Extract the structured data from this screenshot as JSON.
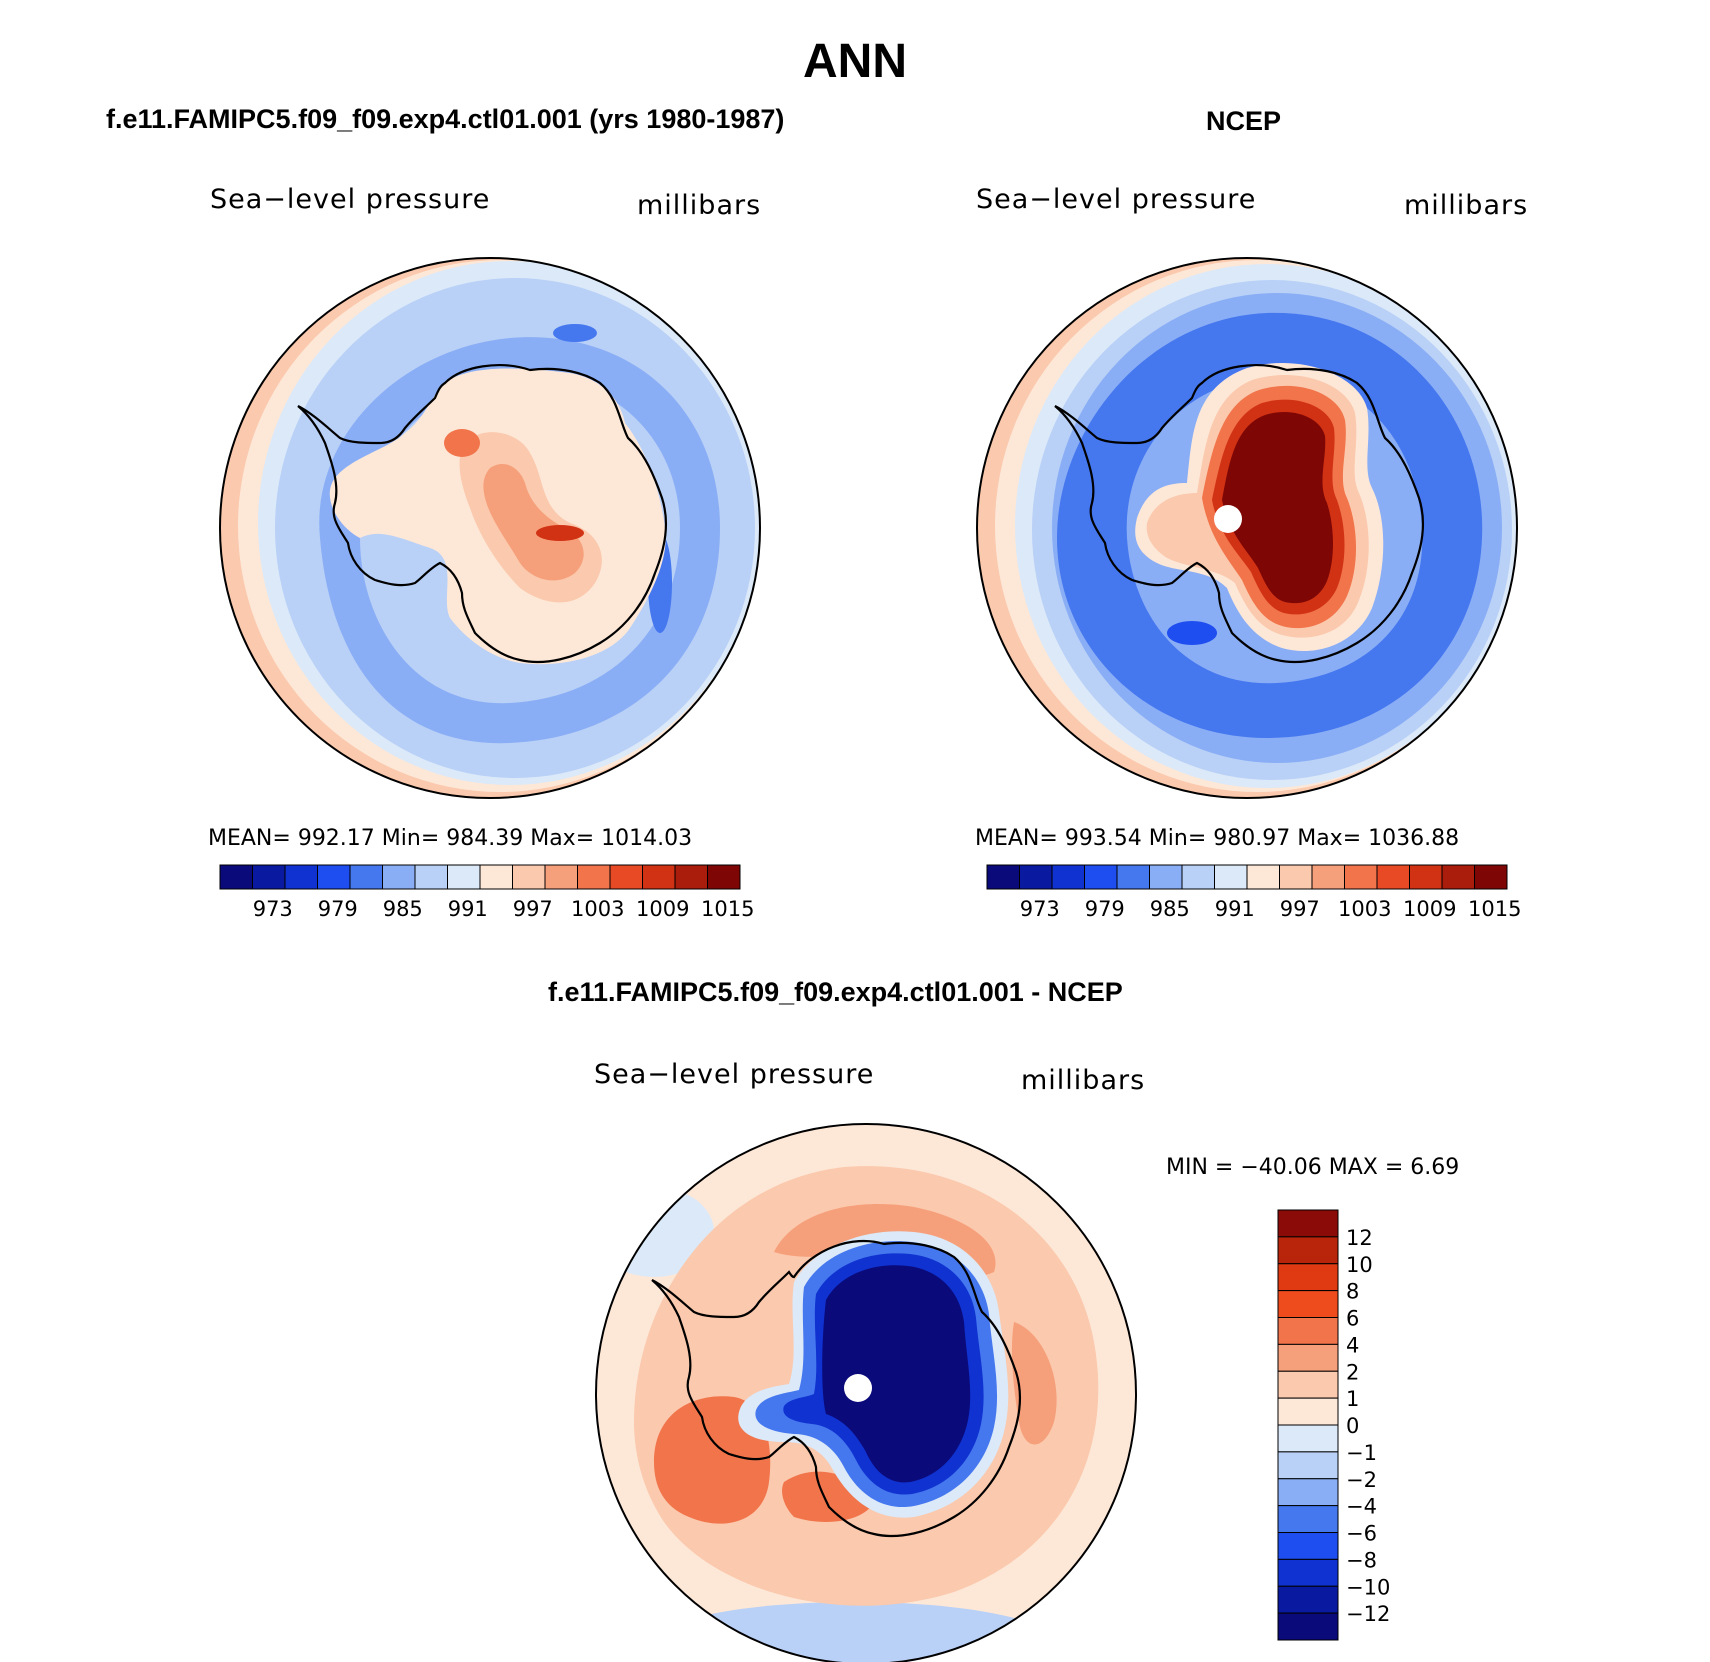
{
  "figure": {
    "title": "ANN"
  },
  "panels": [
    {
      "title": "f.e11.FAMIPC5.f09_f09.exp4.ctl01.001 (yrs 1980-1987)",
      "variable": "Sea−level pressure",
      "units": "millibars",
      "stats": "MEAN=  992.17    Min=  984.39    Max=  1014.03"
    },
    {
      "title": "NCEP",
      "variable": "Sea−level pressure",
      "units": "millibars",
      "stats": "MEAN=  993.54    Min=  980.97    Max=  1036.88"
    },
    {
      "title": "f.e11.FAMIPC5.f09_f09.exp4.ctl01.001 - NCEP",
      "variable": "Sea−level pressure",
      "units": "millibars",
      "stats": "MIN  =  −40.06  MAX  =     6.69"
    }
  ],
  "colorbar_abs": {
    "colors": [
      "#0a0a7a",
      "#0a1aa0",
      "#0f32d0",
      "#1e4ef0",
      "#4577ef",
      "#8aaef5",
      "#b9d0f7",
      "#dbe9f8",
      "#fde8d8",
      "#fbc9ad",
      "#f6a07b",
      "#f1744b",
      "#e84a26",
      "#d23214",
      "#aa1d0c",
      "#7e0706"
    ],
    "labels": [
      "973",
      "979",
      "985",
      "991",
      "997",
      "1003",
      "1009",
      "1015"
    ]
  },
  "colorbar_diff": {
    "colors": [
      "#0a0a7a",
      "#0a1aa0",
      "#0f32d0",
      "#1e4ef0",
      "#4577ef",
      "#8aaef5",
      "#b9d0f7",
      "#dbe9f8",
      "#fde8d8",
      "#fbc9ad",
      "#f6a07b",
      "#f1744b",
      "#ef4c1e",
      "#e03a12",
      "#b8250a",
      "#8a0b08"
    ],
    "labels": [
      "12",
      "10",
      "8",
      "6",
      "4",
      "2",
      "1",
      "0",
      "−1",
      "−2",
      "−4",
      "−6",
      "−8",
      "−10",
      "−12"
    ]
  }
}
